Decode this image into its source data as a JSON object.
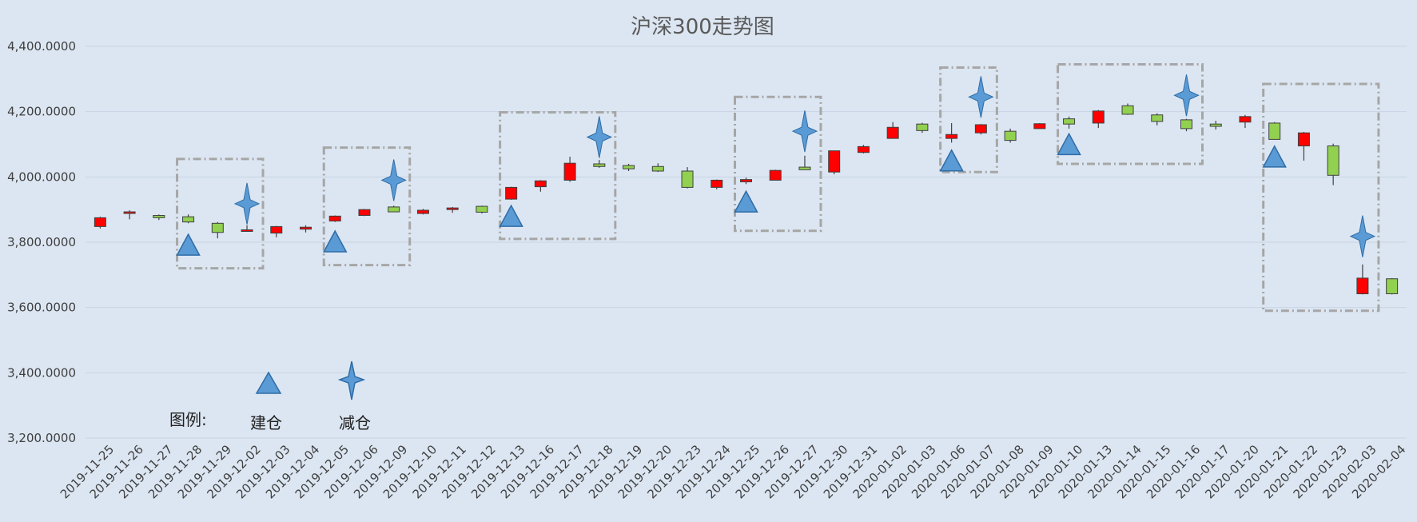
{
  "chart_data": {
    "type": "candlestick",
    "title": "沪深300走势图",
    "ylim": [
      3200,
      4400
    ],
    "y_ticks": [
      3200,
      3400,
      3600,
      3800,
      4000,
      4200,
      4400
    ],
    "y_tick_labels": [
      "3,200.0000",
      "3,400.0000",
      "3,600.0000",
      "3,800.0000",
      "4,000.0000",
      "4,200.0000",
      "4,400.0000"
    ],
    "grid": true,
    "x": [
      "2019-11-25",
      "2019-11-26",
      "2019-11-27",
      "2019-11-28",
      "2019-11-29",
      "2019-12-02",
      "2019-12-03",
      "2019-12-04",
      "2019-12-05",
      "2019-12-06",
      "2019-12-09",
      "2019-12-10",
      "2019-12-11",
      "2019-12-12",
      "2019-12-13",
      "2019-12-16",
      "2019-12-17",
      "2019-12-18",
      "2019-12-19",
      "2019-12-20",
      "2019-12-23",
      "2019-12-24",
      "2019-12-25",
      "2019-12-26",
      "2019-12-27",
      "2019-12-30",
      "2019-12-31",
      "2020-01-02",
      "2020-01-03",
      "2020-01-06",
      "2020-01-07",
      "2020-01-08",
      "2020-01-09",
      "2020-01-10",
      "2020-01-13",
      "2020-01-14",
      "2020-01-15",
      "2020-01-16",
      "2020-01-17",
      "2020-01-20",
      "2020-01-21",
      "2020-01-22",
      "2020-01-23",
      "2020-02-03",
      "2020-02-04"
    ],
    "ohlc": [
      [
        3848,
        3878,
        3842,
        3875
      ],
      [
        3890,
        3898,
        3870,
        3893
      ],
      [
        3882,
        3885,
        3868,
        3875
      ],
      [
        3878,
        3885,
        3858,
        3862
      ],
      [
        3858,
        3862,
        3812,
        3830
      ],
      [
        3835,
        3852,
        3832,
        3838
      ],
      [
        3828,
        3850,
        3815,
        3848
      ],
      [
        3840,
        3852,
        3830,
        3846
      ],
      [
        3865,
        3882,
        3862,
        3880
      ],
      [
        3882,
        3902,
        3880,
        3900
      ],
      [
        3908,
        3912,
        3892,
        3893
      ],
      [
        3888,
        3902,
        3885,
        3898
      ],
      [
        3900,
        3908,
        3890,
        3905
      ],
      [
        3910,
        3912,
        3888,
        3892
      ],
      [
        3932,
        3970,
        3930,
        3968
      ],
      [
        3970,
        3990,
        3955,
        3988
      ],
      [
        3990,
        4062,
        3985,
        4042
      ],
      [
        4040,
        4052,
        4028,
        4032
      ],
      [
        4035,
        4040,
        4018,
        4025
      ],
      [
        4032,
        4042,
        4015,
        4018
      ],
      [
        4018,
        4030,
        3965,
        3968
      ],
      [
        3968,
        3992,
        3962,
        3990
      ],
      [
        3985,
        3998,
        3978,
        3992
      ],
      [
        3990,
        4022,
        3990,
        4020
      ],
      [
        4030,
        4065,
        4022,
        4022
      ],
      [
        4015,
        4080,
        4008,
        4080
      ],
      [
        4075,
        4098,
        4072,
        4093
      ],
      [
        4118,
        4168,
        4118,
        4152
      ],
      [
        4162,
        4166,
        4135,
        4142
      ],
      [
        4118,
        4165,
        4105,
        4130
      ],
      [
        4135,
        4162,
        4130,
        4160
      ],
      [
        4140,
        4148,
        4105,
        4112
      ],
      [
        4148,
        4165,
        4148,
        4163
      ],
      [
        4178,
        4185,
        4148,
        4162
      ],
      [
        4165,
        4205,
        4150,
        4202
      ],
      [
        4218,
        4225,
        4190,
        4192
      ],
      [
        4190,
        4195,
        4158,
        4170
      ],
      [
        4175,
        4178,
        4140,
        4148
      ],
      [
        4162,
        4172,
        4145,
        4155
      ],
      [
        4168,
        4190,
        4150,
        4185
      ],
      [
        4165,
        4168,
        4115,
        4115
      ],
      [
        4095,
        4138,
        4050,
        4135
      ],
      [
        4095,
        4102,
        3975,
        4005
      ],
      [
        3642,
        3732,
        3640,
        3690
      ],
      [
        3688,
        3690,
        3640,
        3642
      ]
    ],
    "markers": {
      "建仓": [
        {
          "date": "2019-11-28",
          "y": 3790
        },
        {
          "date": "2019-12-05",
          "y": 3800
        },
        {
          "date": "2019-12-13",
          "y": 3878
        },
        {
          "date": "2019-12-25",
          "y": 3922
        },
        {
          "date": "2020-01-06",
          "y": 4048
        },
        {
          "date": "2020-01-10",
          "y": 4098
        },
        {
          "date": "2020-01-21",
          "y": 4060
        }
      ],
      "减仓": [
        {
          "date": "2019-12-02",
          "y": 3918
        },
        {
          "date": "2019-12-09",
          "y": 3990
        },
        {
          "date": "2019-12-18",
          "y": 4122
        },
        {
          "date": "2019-12-27",
          "y": 4140
        },
        {
          "date": "2020-01-07",
          "y": 4245
        },
        {
          "date": "2020-01-16",
          "y": 4250
        },
        {
          "date": "2020-02-03",
          "y": 3818
        }
      ]
    },
    "legend": {
      "label": "图例:",
      "entries": [
        "建仓",
        "减仓"
      ],
      "position": "bottom-left"
    },
    "colors": {
      "background": "#dce6f2",
      "up_fill": "#ff0000",
      "down_fill": "#92d050",
      "candle_stroke": "#404040",
      "marker_fill": "#5b9bd5",
      "marker_stroke": "#2e6ca6",
      "grid": "#c8d3e3",
      "box": "#a6a6a6",
      "text": "#404040",
      "title": "#595959"
    },
    "position_boxes": [
      {
        "from": "2019-11-28",
        "to": "2019-12-02",
        "y_top": 4055,
        "y_bottom": 3720
      },
      {
        "from": "2019-12-05",
        "to": "2019-12-09",
        "y_top": 4090,
        "y_bottom": 3730
      },
      {
        "from": "2019-12-13",
        "to": "2019-12-18",
        "y_top": 4198,
        "y_bottom": 3810
      },
      {
        "from": "2019-12-25",
        "to": "2019-12-27",
        "y_top": 4245,
        "y_bottom": 3835
      },
      {
        "from": "2020-01-06",
        "to": "2020-01-07",
        "y_top": 4335,
        "y_bottom": 4015
      },
      {
        "from": "2020-01-10",
        "to": "2020-01-16",
        "y_top": 4345,
        "y_bottom": 4040
      },
      {
        "from": "2020-01-21",
        "to": "2020-02-03",
        "y_top": 4285,
        "y_bottom": 3590
      }
    ]
  }
}
